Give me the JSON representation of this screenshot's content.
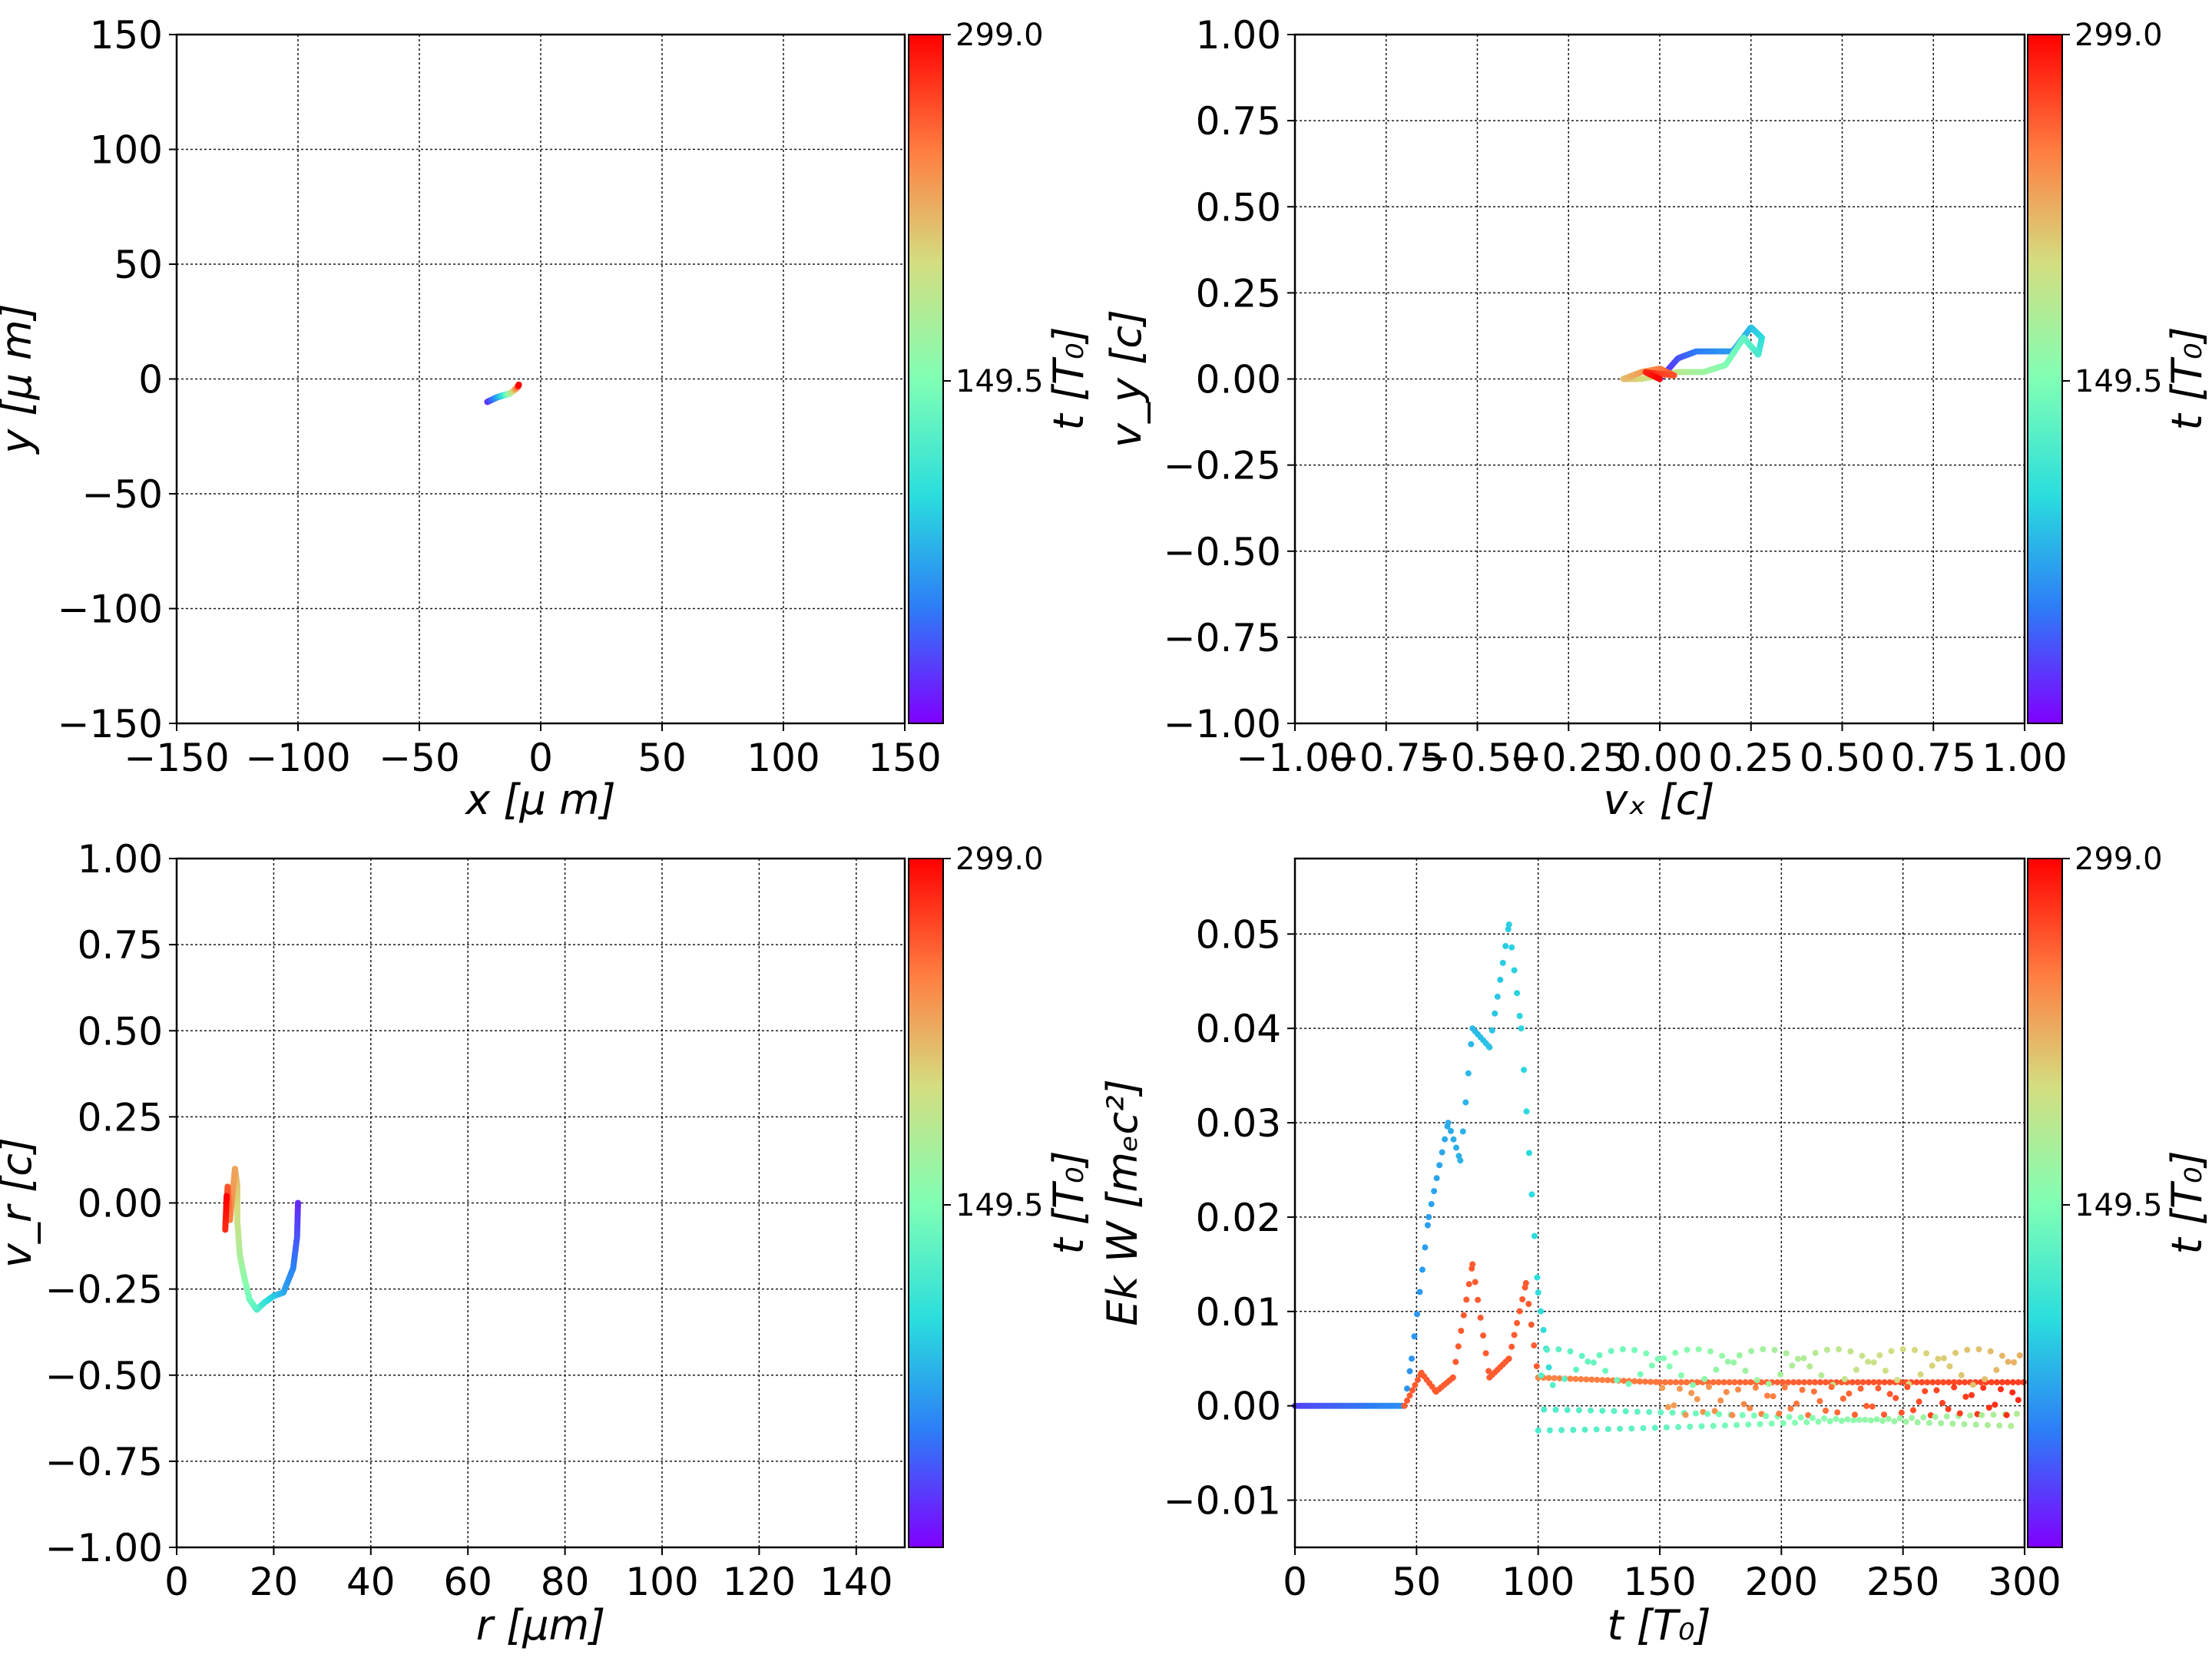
{
  "colorbar": {
    "label": "t [T₀]",
    "ticks": [
      "299.0",
      "149.5"
    ],
    "range": [
      0,
      299
    ],
    "colormap": "rainbow",
    "colors": [
      "#8000ff",
      "#2c7ef7",
      "#2adddd",
      "#80ffb4",
      "#d4dd80",
      "#ff7e41",
      "#ff0000"
    ]
  },
  "chart_data": [
    {
      "type": "scatter",
      "title": "",
      "xlabel": "x  [μ m]",
      "ylabel": "y  [μ m]",
      "xlim": [
        -150,
        150
      ],
      "ylim": [
        -150,
        150
      ],
      "xticks": [
        -150,
        -100,
        -50,
        0,
        50,
        100,
        150
      ],
      "yticks": [
        -150,
        -100,
        -50,
        0,
        50,
        100,
        150
      ],
      "xtick_labels": [
        "−150",
        "−100",
        "−50",
        "0",
        "50",
        "100",
        "150"
      ],
      "ytick_labels": [
        "−150",
        "−100",
        "−50",
        "0",
        "50",
        "100",
        "150"
      ],
      "grid": true,
      "color_by": "t [T₀]",
      "trajectory_xy": [
        [
          -22,
          -10
        ],
        [
          -18,
          -8
        ],
        [
          -15,
          -7
        ],
        [
          -13,
          -6.5
        ],
        [
          -11,
          -5
        ],
        [
          -9.5,
          -3.5
        ],
        [
          -9,
          -2.5
        ]
      ]
    },
    {
      "type": "scatter",
      "title": "",
      "xlabel": "vₓ [c]",
      "ylabel": "v_y [c]",
      "xlim": [
        -1,
        1
      ],
      "ylim": [
        -1,
        1
      ],
      "xticks": [
        -1,
        -0.75,
        -0.5,
        -0.25,
        0,
        0.25,
        0.5,
        0.75,
        1
      ],
      "yticks": [
        -1,
        -0.75,
        -0.5,
        -0.25,
        0,
        0.25,
        0.5,
        0.75,
        1
      ],
      "xtick_labels": [
        "−1.00",
        "−0.75",
        "−0.50",
        "−0.25",
        "0.00",
        "0.25",
        "0.50",
        "0.75",
        "1.00"
      ],
      "ytick_labels": [
        "−1.00",
        "−0.75",
        "−0.50",
        "−0.25",
        "0.00",
        "0.25",
        "0.50",
        "0.75",
        "1.00"
      ],
      "grid": true,
      "color_by": "t [T₀]",
      "trajectory_xy": [
        [
          0,
          0
        ],
        [
          0.05,
          0.06
        ],
        [
          0.1,
          0.08
        ],
        [
          0.2,
          0.08
        ],
        [
          0.25,
          0.15
        ],
        [
          0.28,
          0.12
        ],
        [
          0.27,
          0.07
        ],
        [
          0.23,
          0.12
        ],
        [
          0.18,
          0.04
        ],
        [
          0.12,
          0.02
        ],
        [
          0.05,
          0.02
        ],
        [
          -0.05,
          0
        ],
        [
          -0.1,
          0
        ],
        [
          -0.05,
          0.02
        ],
        [
          0,
          0.03
        ],
        [
          0.04,
          0.01
        ],
        [
          -0.04,
          0.02
        ],
        [
          0,
          0
        ]
      ]
    },
    {
      "type": "scatter",
      "title": "",
      "xlabel": "r [μm]",
      "ylabel": "v_r [c]",
      "xlim": [
        0,
        150
      ],
      "ylim": [
        -1,
        1
      ],
      "xticks": [
        0,
        20,
        40,
        60,
        80,
        100,
        120,
        140
      ],
      "yticks": [
        -1,
        -0.75,
        -0.5,
        -0.25,
        0,
        0.25,
        0.5,
        0.75,
        1
      ],
      "xtick_labels": [
        "0",
        "20",
        "40",
        "60",
        "80",
        "100",
        "120",
        "140"
      ],
      "ytick_labels": [
        "−1.00",
        "−0.75",
        "−0.50",
        "−0.25",
        "0.00",
        "0.25",
        "0.50",
        "0.75",
        "1.00"
      ],
      "grid": true,
      "color_by": "t [T₀]",
      "trajectory_xy": [
        [
          25,
          0
        ],
        [
          24.8,
          -0.1
        ],
        [
          24,
          -0.19
        ],
        [
          22,
          -0.26
        ],
        [
          20,
          -0.27
        ],
        [
          18,
          -0.29
        ],
        [
          16.5,
          -0.31
        ],
        [
          15,
          -0.28
        ],
        [
          14,
          -0.22
        ],
        [
          13,
          -0.15
        ],
        [
          12.5,
          -0.05
        ],
        [
          12.5,
          0.05
        ],
        [
          12,
          0.1
        ],
        [
          11,
          -0.05
        ],
        [
          10.5,
          0.05
        ],
        [
          10,
          -0.08
        ],
        [
          10.3,
          0.02
        ]
      ]
    },
    {
      "type": "scatter",
      "title": "",
      "xlabel": "t [T₀]",
      "ylabel": "Ek W [mₑc²]",
      "xlim": [
        0,
        300
      ],
      "ylim": [
        -0.015,
        0.058
      ],
      "xticks": [
        0,
        50,
        100,
        150,
        200,
        250,
        300
      ],
      "yticks": [
        -0.01,
        0,
        0.01,
        0.02,
        0.03,
        0.04,
        0.05
      ],
      "xtick_labels": [
        "0",
        "50",
        "100",
        "150",
        "200",
        "250",
        "300"
      ],
      "ytick_labels": [
        "−0.01",
        "0.00",
        "0.01",
        "0.02",
        "0.03",
        "0.04",
        "0.05"
      ],
      "grid": true,
      "color_by": "t [T₀]",
      "series": [
        {
          "values_t": [
            0,
            45,
            48,
            55,
            63,
            68,
            73,
            80,
            88,
            93,
            100,
            105
          ],
          "values": [
            0,
            0,
            0.005,
            0.02,
            0.03,
            0.026,
            0.04,
            0.038,
            0.051,
            0.04,
            0.012,
            0.003
          ]
        },
        {
          "values_t": [
            45,
            52,
            58,
            65,
            73,
            80,
            88,
            95,
            100,
            150,
            300
          ],
          "values": [
            0,
            0.0035,
            0.0015,
            0.003,
            0.015,
            0.003,
            0.005,
            0.013,
            0.003,
            0.0025,
            0.0025
          ]
        }
      ]
    }
  ]
}
